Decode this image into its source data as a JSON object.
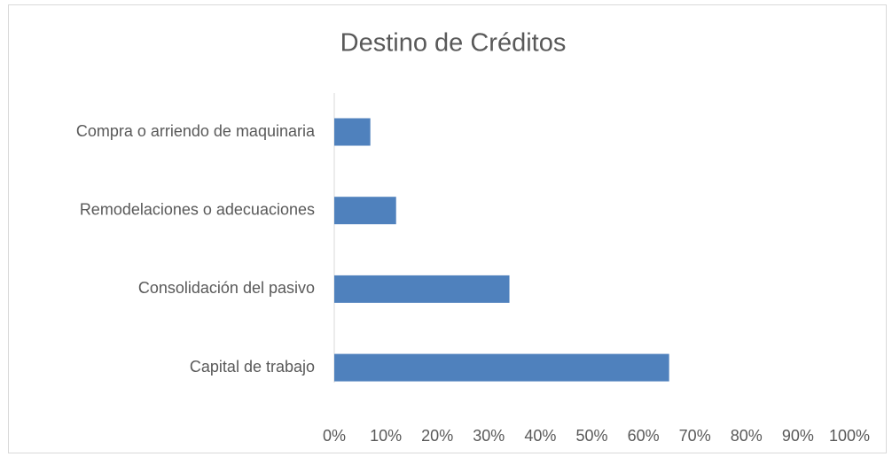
{
  "chart_data": {
    "type": "hbar",
    "title": "Destino de Créditos",
    "categories": [
      "Compra o arriendo de maquinaria",
      "Remodelaciones o adecuaciones",
      "Consolidación del pasivo",
      "Capital de trabajo"
    ],
    "values": [
      7,
      12,
      34,
      65
    ],
    "color": "#4f81bd",
    "xlim": [
      0,
      100
    ],
    "xticks": [
      {
        "value": 0,
        "label": "0%"
      },
      {
        "value": 10,
        "label": "10%"
      },
      {
        "value": 20,
        "label": "20%"
      },
      {
        "value": 30,
        "label": "30%"
      },
      {
        "value": 40,
        "label": "40%"
      },
      {
        "value": 50,
        "label": "50%"
      },
      {
        "value": 60,
        "label": "60%"
      },
      {
        "value": 70,
        "label": "70%"
      },
      {
        "value": 80,
        "label": "80%"
      },
      {
        "value": 90,
        "label": "90%"
      },
      {
        "value": 100,
        "label": "100%"
      }
    ],
    "grid": false
  }
}
